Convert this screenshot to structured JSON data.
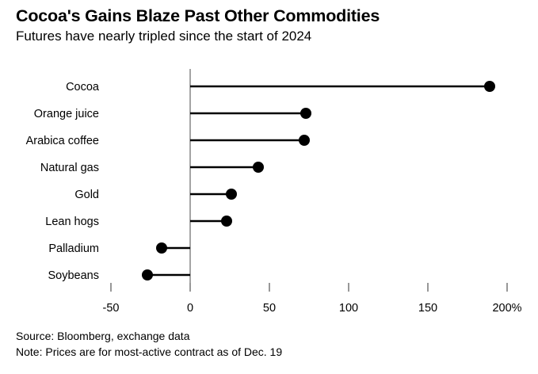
{
  "header": {
    "title": "Cocoa's Gains Blaze Past Other Commodities",
    "subtitle": "Futures have nearly tripled since the start of 2024"
  },
  "chart_data": {
    "type": "bar",
    "variant": "lollipop",
    "orientation": "horizontal",
    "title": "Cocoa's Gains Blaze Past Other Commodities",
    "subtitle": "Futures have nearly tripled since the start of 2024",
    "categories": [
      "Cocoa",
      "Orange juice",
      "Arabica coffee",
      "Natural gas",
      "Gold",
      "Lean hogs",
      "Palladium",
      "Soybeans"
    ],
    "values": [
      189,
      73,
      72,
      43,
      26,
      23,
      -18,
      -27
    ],
    "unit": "%",
    "xlim": [
      -50,
      200
    ],
    "x_ticks": [
      {
        "value": -50,
        "label": "-50"
      },
      {
        "value": 0,
        "label": "0"
      },
      {
        "value": 50,
        "label": "50"
      },
      {
        "value": 100,
        "label": "100"
      },
      {
        "value": 150,
        "label": "150"
      },
      {
        "value": 200,
        "label": "200%"
      }
    ],
    "grid": false,
    "legend": false,
    "colors": {
      "dot": "#000000",
      "stem": "#000000",
      "text": "#000000",
      "zero_axis": "#4a4a4a",
      "tick": "#757575"
    }
  },
  "footer": {
    "source": "Source: Bloomberg, exchange data",
    "note": "Note: Prices are for most-active contract as of Dec. 19"
  }
}
